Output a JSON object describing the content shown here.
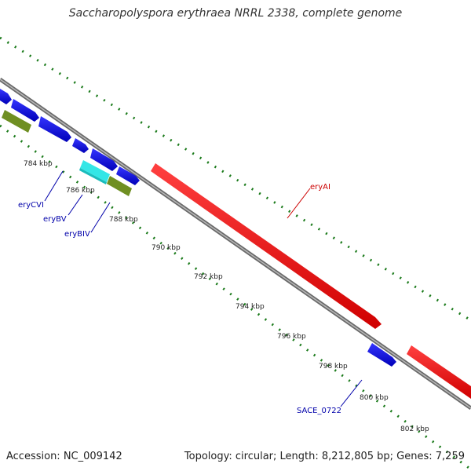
{
  "header": {
    "title": "Saccharopolyspora erythraea NRRL 2338, complete genome"
  },
  "footer": {
    "accession": "Accession: NC_009142",
    "summary": "Topology: circular; Length: 8,212,805 bp; Genes: 7,259"
  },
  "tick_labels": [
    "784 kbp",
    "786 kbp",
    "788 kbp",
    "790 kbp",
    "792 kbp",
    "794 kbp",
    "796 kbp",
    "798 kbp",
    "800 kbp",
    "802 kbp"
  ],
  "gene_labels": {
    "eryCVI": "eryCVI",
    "eryBV": "eryBV",
    "eryBIV": "eryBIV",
    "eryAI": "eryAI",
    "SACE_0722": "SACE_0722"
  },
  "colors": {
    "backbone": "#8a8a8a",
    "ticks": "#1a7a1a",
    "gene_blue": "#0b0bdc",
    "gene_red": "#ef1010",
    "gene_cyan": "#34e6e6",
    "gene_olive": "#6f8f22",
    "label_blue": "#0000aa",
    "label_red": "#cc0000"
  }
}
